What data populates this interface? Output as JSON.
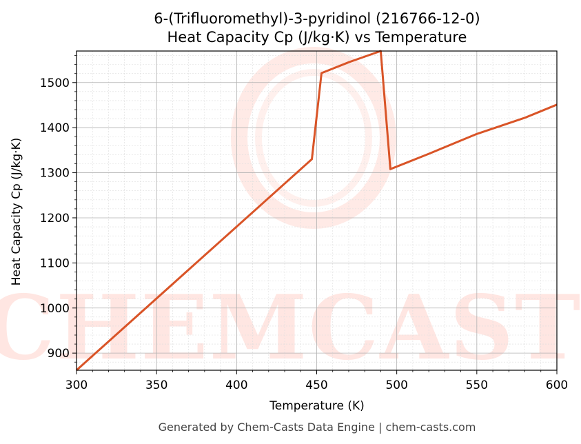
{
  "chart_data": {
    "type": "line",
    "title": "6-(Trifluoromethyl)-3-pyridinol (216766-12-0)",
    "subtitle": "Heat Capacity Cp (J/kg·K) vs Temperature",
    "xlabel": "Temperature (K)",
    "ylabel": "Heat Capacity Cp (J/kg·K)",
    "xlim": [
      300,
      600
    ],
    "ylim": [
      862,
      1570
    ],
    "xticks": [
      300,
      350,
      400,
      450,
      500,
      550,
      600
    ],
    "yticks": [
      900,
      1000,
      1100,
      1200,
      1300,
      1400,
      1500
    ],
    "grid": true,
    "line_color": "#d95427",
    "series": [
      {
        "x": [
          300,
          447,
          453,
          470,
          490,
          496,
          520,
          550,
          580,
          600
        ],
        "y": [
          862,
          1330,
          1521,
          1545,
          1570,
          1308,
          1342,
          1386,
          1422,
          1451
        ]
      }
    ]
  },
  "watermark": "CHEMCASTS",
  "footer": "Generated by Chem-Casts Data Engine | chem-casts.com"
}
